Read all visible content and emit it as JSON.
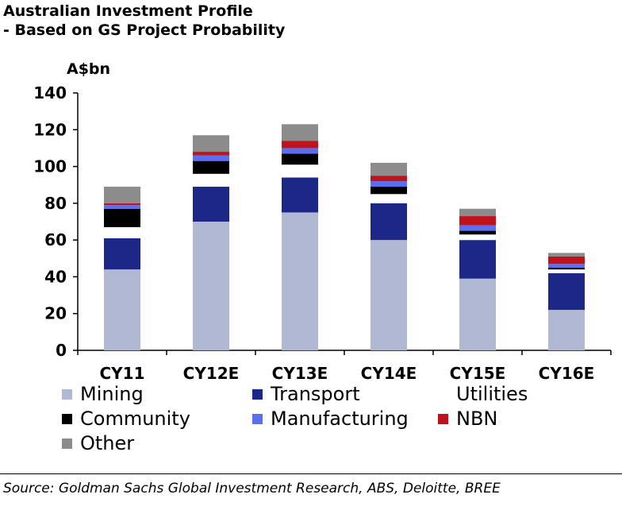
{
  "title_line1": "Australian Investment Profile",
  "title_line2": "- Based on GS Project Probability",
  "unit_label": "A$bn",
  "source": "Source: Goldman Sachs Global Investment Research, ABS, Deloitte, BREE",
  "chart_data": {
    "type": "bar",
    "stacked": true,
    "title": "Australian Investment Profile - Based on GS Project Probability",
    "ylabel": "A$bn",
    "xlabel": "",
    "ylim": [
      0,
      140
    ],
    "yticks": [
      0,
      20,
      40,
      60,
      80,
      100,
      120,
      140
    ],
    "categories": [
      "CY11",
      "CY12E",
      "CY13E",
      "CY14E",
      "CY15E",
      "CY16E"
    ],
    "series": [
      {
        "name": "Mining",
        "color": "#b0b8d4",
        "values": [
          44,
          70,
          75,
          60,
          39,
          22
        ]
      },
      {
        "name": "Transport",
        "color": "#1c2787",
        "values": [
          17,
          19,
          19,
          20,
          21,
          20
        ]
      },
      {
        "name": "Utilities",
        "color": "#ffffff",
        "values": [
          6,
          7,
          7,
          5,
          3,
          2
        ]
      },
      {
        "name": "Community",
        "color": "#000000",
        "values": [
          10,
          7,
          6,
          4,
          2,
          1
        ]
      },
      {
        "name": "Manufacturing",
        "color": "#5a6ef0",
        "values": [
          2,
          3,
          3,
          3,
          3,
          2
        ]
      },
      {
        "name": "NBN",
        "color": "#c0121a",
        "values": [
          1,
          2,
          4,
          3,
          5,
          4
        ]
      },
      {
        "name": "Other",
        "color": "#8c8c8c",
        "values": [
          9,
          9,
          9,
          7,
          4,
          2
        ]
      }
    ],
    "legend_position": "bottom"
  }
}
